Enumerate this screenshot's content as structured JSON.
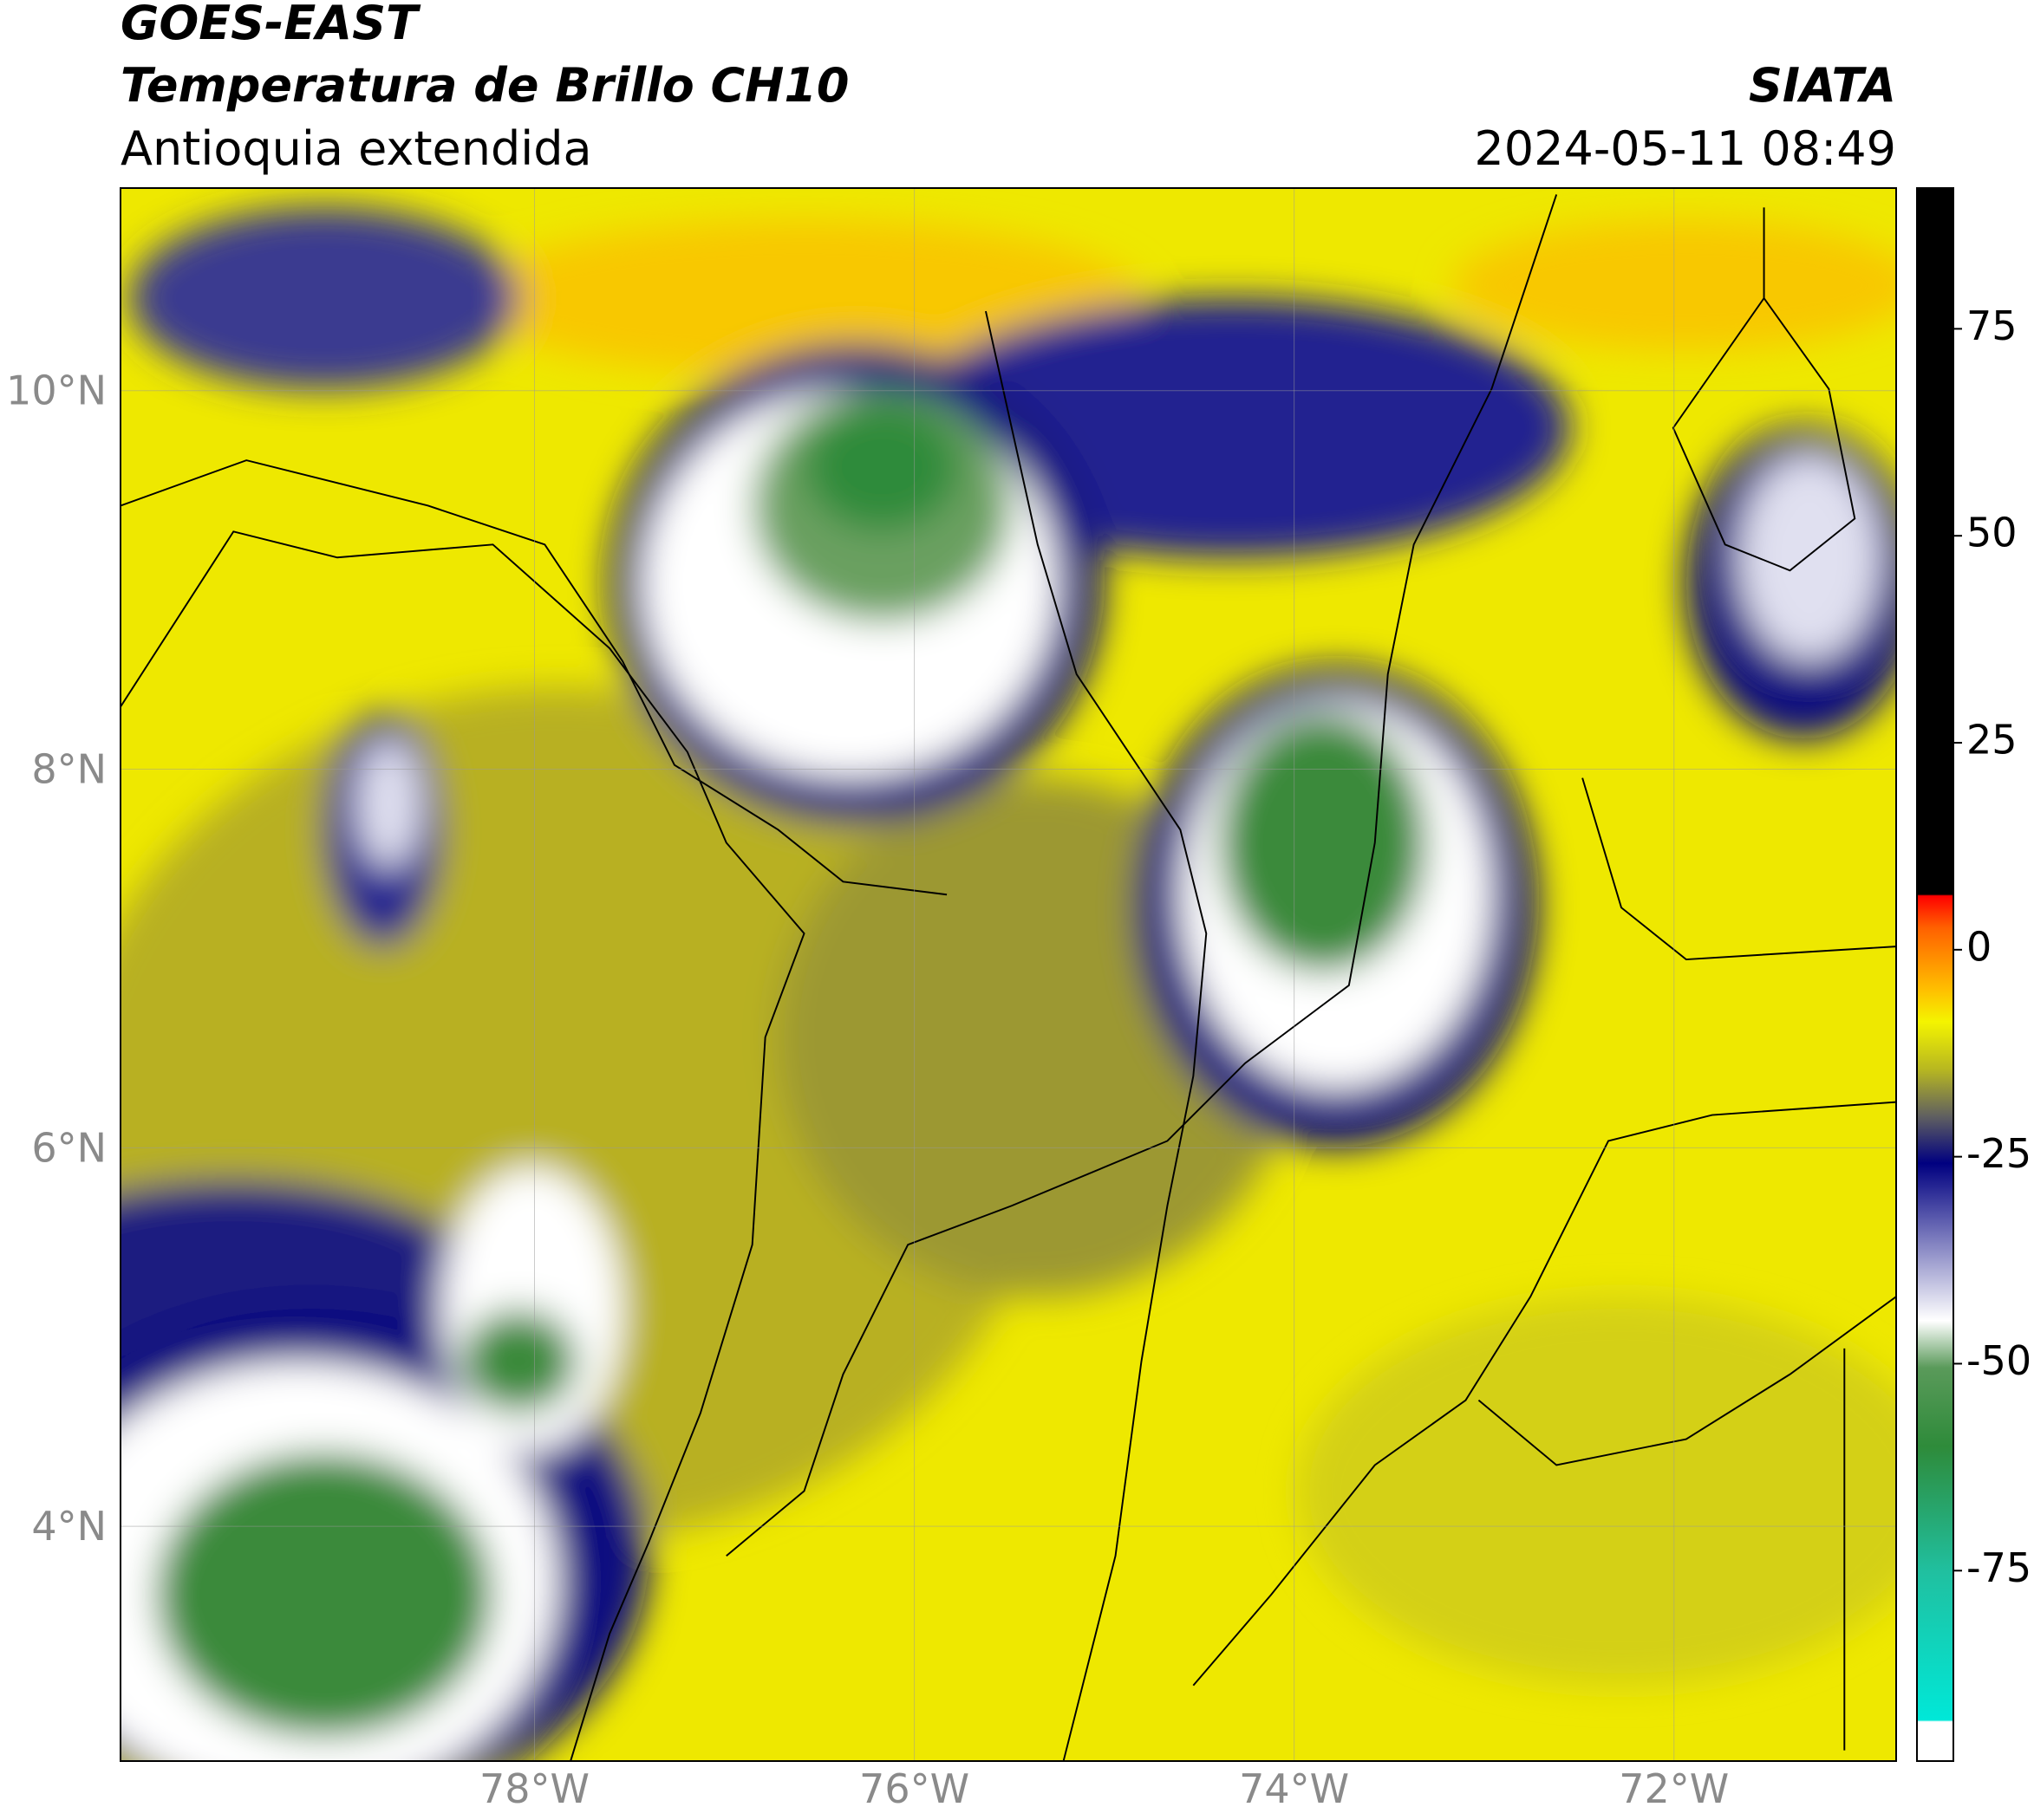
{
  "header": {
    "title": "GOES-EAST",
    "subtitle": "Temperatura de Brillo CH10",
    "region": "Antioquia extendida",
    "source": "SIATA",
    "timestamp": "2024-05-11 08:49"
  },
  "map": {
    "xlim": [
      -80.18,
      -70.83
    ],
    "ylim": [
      2.76,
      11.07
    ],
    "xticks": [
      {
        "value": -78,
        "label": "78°W"
      },
      {
        "value": -76,
        "label": "76°W"
      },
      {
        "value": -74,
        "label": "74°W"
      },
      {
        "value": -72,
        "label": "72°W"
      }
    ],
    "yticks": [
      {
        "value": 4,
        "label": "4°N"
      },
      {
        "value": 6,
        "label": "6°N"
      },
      {
        "value": 8,
        "label": "8°N"
      },
      {
        "value": 10,
        "label": "10°N"
      }
    ],
    "grid": true
  },
  "colorbar": {
    "lim": [
      -98,
      92
    ],
    "ticks": [
      -75,
      -50,
      -25,
      0,
      25,
      50,
      75
    ]
  }
}
